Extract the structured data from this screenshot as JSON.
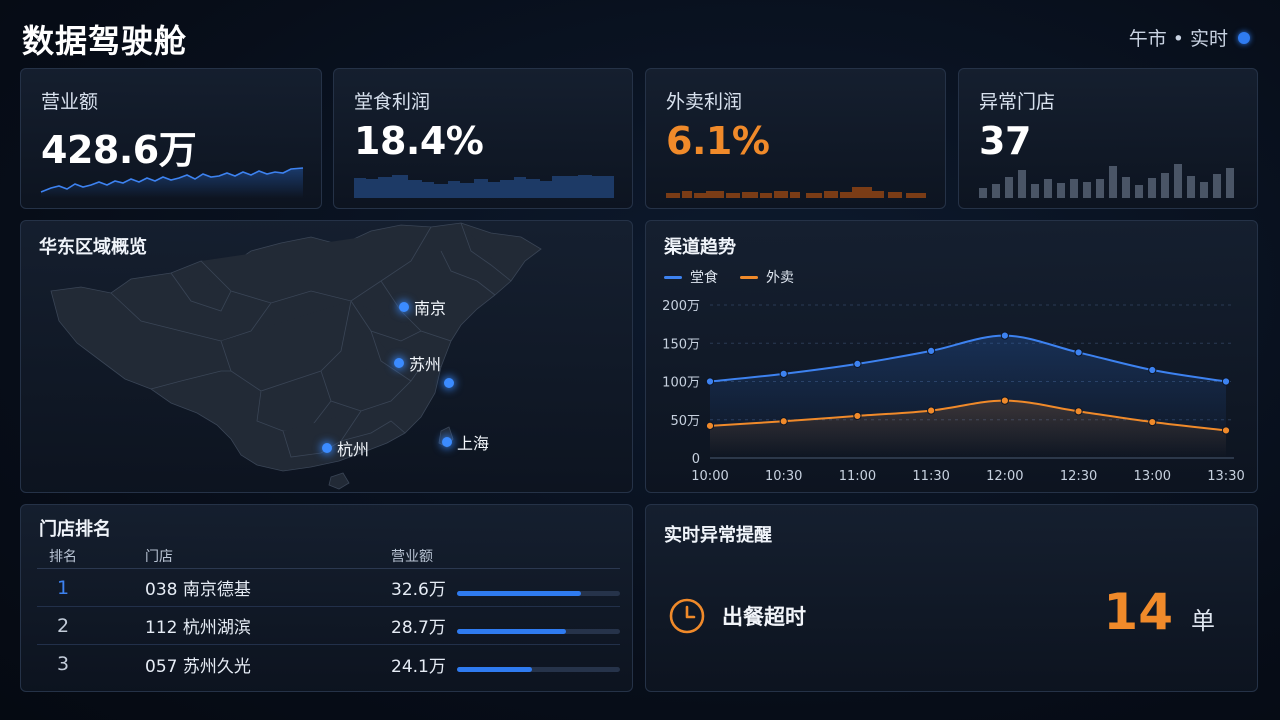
{
  "header": {
    "title": "数据驾驶舱",
    "status": "午市 • 实时",
    "status_color": "#2f7bf0"
  },
  "kpis": [
    {
      "label": "营业额",
      "value": "428.6万",
      "spark": "line"
    },
    {
      "label": "堂食利润",
      "value": "18.4%",
      "spark": "area-blocks"
    },
    {
      "label": "外卖利润",
      "value": "6.1%",
      "accent": "#f08a2a",
      "spark": "orange-blocks"
    },
    {
      "label": "异常门店",
      "value": "37",
      "spark": "bars"
    }
  ],
  "map": {
    "title": "华东区域概览",
    "cities": [
      "南京",
      "苏州",
      "杭州",
      "上海"
    ]
  },
  "channel": {
    "title": "渠道趋势",
    "legend": [
      {
        "name": "堂食",
        "color": "#3d82f0"
      },
      {
        "name": "外卖",
        "color": "#f08a2a"
      }
    ]
  },
  "chart_data": {
    "type": "line",
    "title": "渠道趋势",
    "categories": [
      "10:00",
      "10:30",
      "11:00",
      "11:30",
      "12:00",
      "12:30",
      "13:00",
      "13:30"
    ],
    "y_ticks": [
      "0",
      "50万",
      "100万",
      "150万",
      "200万"
    ],
    "ylim": [
      0,
      200
    ],
    "series": [
      {
        "name": "堂食",
        "values": [
          100,
          110,
          123,
          140,
          160,
          138,
          115,
          100
        ]
      },
      {
        "name": "外卖",
        "values": [
          42,
          48,
          55,
          62,
          75,
          61,
          47,
          36
        ]
      }
    ],
    "legend": "top-left",
    "grid": true
  },
  "ranking": {
    "title": "门店排名",
    "headers": [
      "排名",
      "门店",
      "营业额"
    ],
    "rows": [
      {
        "rank": "1",
        "store": "038 南京德基",
        "revenue": "32.6万",
        "share": 0.76
      },
      {
        "rank": "2",
        "store": "112 杭州湖滨",
        "revenue": "28.7万",
        "share": 0.67
      },
      {
        "rank": "3",
        "store": "057 苏州久光",
        "revenue": "24.1万",
        "share": 0.46
      }
    ]
  },
  "alert": {
    "title": "实时异常提醒",
    "label": "出餐超时",
    "count": "14",
    "unit": "单",
    "icon": "clock-icon"
  }
}
